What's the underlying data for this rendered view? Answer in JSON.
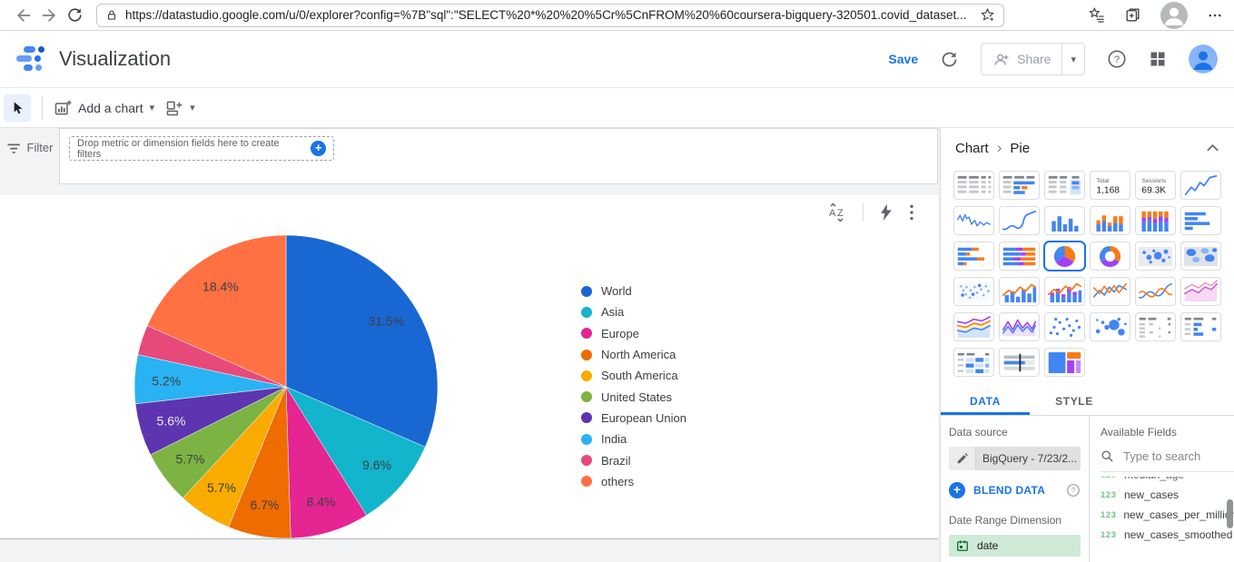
{
  "browser": {
    "url": "https://datastudio.google.com/u/0/explorer?config=%7B\"sql\":\"SELECT%20*%20%20%5Cr%5CnFROM%20%60coursera-bigquery-320501.covid_dataset...",
    "icons": [
      "back-arrow",
      "forward-arrow",
      "refresh",
      "lock",
      "add-favorite-star",
      "favorites-bar",
      "collections",
      "profile",
      "settings-ellipsis"
    ]
  },
  "app_header": {
    "title": "Visualization",
    "save_label": "Save",
    "share_label": "Share",
    "accent_color": "#1a73e8"
  },
  "toolbar": {
    "add_chart_label": "Add a chart"
  },
  "filter_bar": {
    "label": "Filter",
    "drop_hint": "Drop metric or dimension fields here to create filters"
  },
  "chart_data": {
    "type": "pie",
    "legend_position": "right",
    "slices": [
      {
        "label": "World",
        "pct": 31.5,
        "color": "#1967d2",
        "text": "31.5%",
        "text_color": "#3c4043"
      },
      {
        "label": "Asia",
        "pct": 9.6,
        "color": "#12b5cb",
        "text": "9.6%",
        "text_color": "#3c4043"
      },
      {
        "label": "Europe",
        "pct": 8.4,
        "color": "#e52592",
        "text": "8.4%",
        "text_color": "#3c4043"
      },
      {
        "label": "North America",
        "pct": 6.7,
        "color": "#ef6c00",
        "text": "6.7%",
        "text_color": "#3c4043"
      },
      {
        "label": "South America",
        "pct": 5.7,
        "color": "#f9ab00",
        "text": "5.7%",
        "text_color": "#3c4043"
      },
      {
        "label": "United States",
        "pct": 5.7,
        "color": "#7cb342",
        "text": "5.7%",
        "text_color": "#3c4043"
      },
      {
        "label": "European Union",
        "pct": 5.6,
        "color": "#5e35b1",
        "text": "5.6%",
        "text_color": "#e8eaed"
      },
      {
        "label": "India",
        "pct": 5.2,
        "color": "#29b3f4",
        "text": "5.2%",
        "text_color": "#3c4043"
      },
      {
        "label": "Brazil",
        "pct": 3.2,
        "color": "#e8497b",
        "text": "",
        "text_color": ""
      },
      {
        "label": "others",
        "pct": 18.4,
        "color": "#ff7043",
        "text": "18.4%",
        "text_color": "#3c4043"
      }
    ]
  },
  "panel": {
    "breadcrumb": {
      "parent": "Chart",
      "child": "Pie"
    },
    "chart_types": [
      {
        "name": "table"
      },
      {
        "name": "table-with-bars"
      },
      {
        "name": "table-with-heatmap"
      },
      {
        "name": "scorecard-total",
        "label": "Total",
        "value": "1,168"
      },
      {
        "name": "scorecard-sessions",
        "label": "Sessions",
        "value": "69.3K"
      },
      {
        "name": "time-series"
      },
      {
        "name": "sparkline"
      },
      {
        "name": "smoothed-time-series"
      },
      {
        "name": "column-chart"
      },
      {
        "name": "stacked-column-chart"
      },
      {
        "name": "stacked-column-100"
      },
      {
        "name": "bar-chart"
      },
      {
        "name": "stacked-bar-chart"
      },
      {
        "name": "stacked-bar-100"
      },
      {
        "name": "pie-chart",
        "selected": true
      },
      {
        "name": "donut-chart"
      },
      {
        "name": "bubble-map"
      },
      {
        "name": "geo-chart"
      },
      {
        "name": "filled-map"
      },
      {
        "name": "combo-chart"
      },
      {
        "name": "stacked-combo-chart"
      },
      {
        "name": "line-chart"
      },
      {
        "name": "smoothed-line-chart"
      },
      {
        "name": "area-chart"
      },
      {
        "name": "stacked-area-chart"
      },
      {
        "name": "spiky-area-chart"
      },
      {
        "name": "scatter-chart"
      },
      {
        "name": "bubble-chart"
      },
      {
        "name": "pivot-table"
      },
      {
        "name": "pivot-table-bars"
      },
      {
        "name": "pivot-table-heatmap"
      },
      {
        "name": "bullet-chart"
      },
      {
        "name": "treemap"
      }
    ],
    "tabs": {
      "data": "DATA",
      "style": "STYLE",
      "active": "DATA"
    },
    "data_source": {
      "section_label": "Data source",
      "name": "BigQuery - 7/23/2...",
      "blend_label": "BLEND DATA",
      "date_range_label": "Date Range Dimension",
      "date_field": "date",
      "date_chip_color": "#ceead6"
    },
    "available_fields": {
      "label": "Available Fields",
      "search_placeholder": "Type to search",
      "type_badge": "123",
      "type_badge_color": "#34a853",
      "fields": [
        "median_age",
        "new_cases",
        "new_cases_per_million",
        "new_cases_smoothed"
      ]
    }
  }
}
